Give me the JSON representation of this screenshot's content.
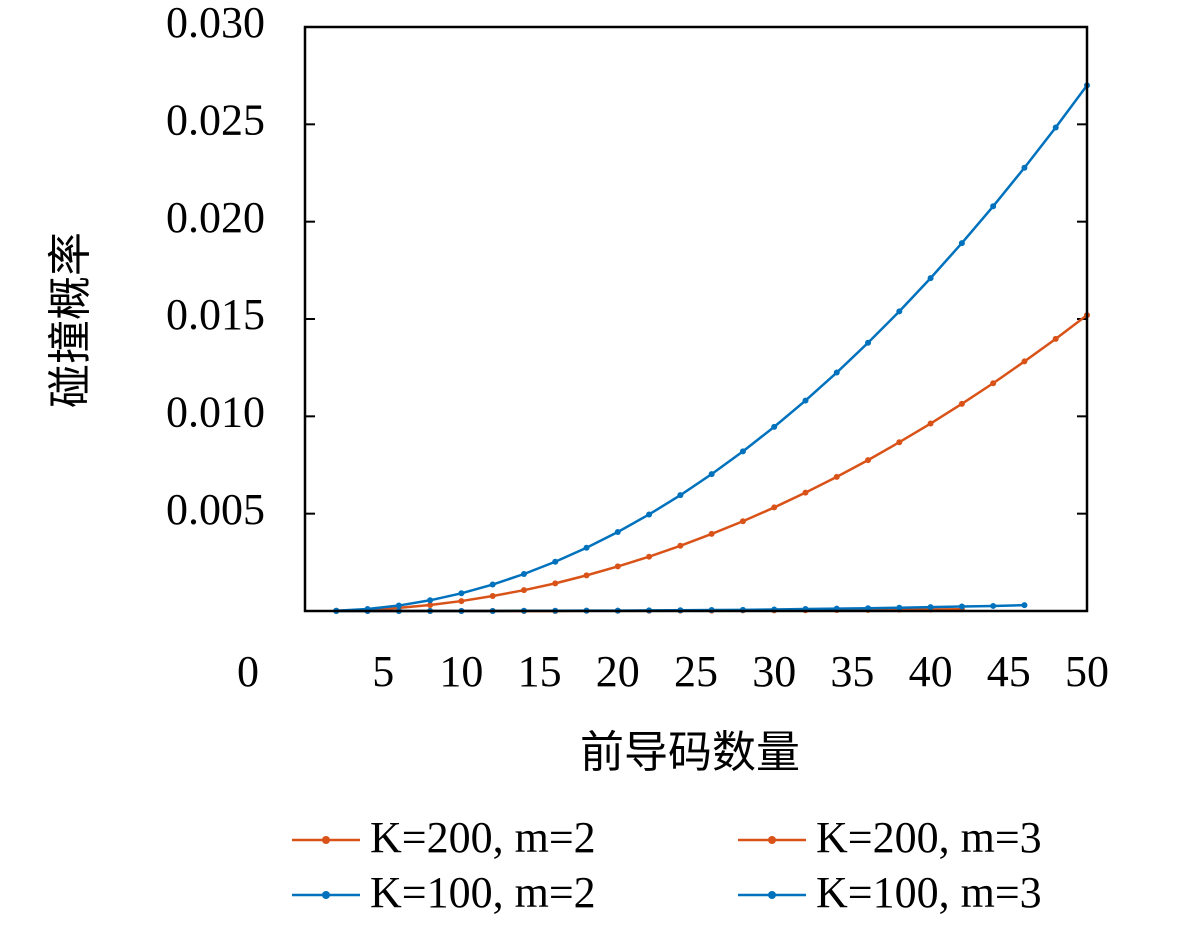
{
  "chart_data": {
    "type": "line",
    "x_label": "前导码数量",
    "y_label": "碰撞概率",
    "xlim": [
      0,
      50
    ],
    "xticks": [
      0,
      5,
      10,
      15,
      20,
      25,
      30,
      35,
      40,
      45,
      50
    ],
    "ylim": [
      0,
      0.03
    ],
    "yticks": [
      0.005,
      {
        "value": 0.01,
        "label": "0.010"
      },
      0.015,
      {
        "value": 0.02,
        "label": "0.020"
      },
      0.025,
      {
        "value": 0.03,
        "label": "0.030"
      }
    ],
    "x": [
      2,
      4,
      6,
      8,
      10,
      12,
      14,
      16,
      18,
      20,
      22,
      24,
      26,
      28,
      30,
      32,
      34,
      36,
      38,
      40,
      42,
      44,
      46,
      48,
      50
    ],
    "series": [
      {
        "name": "K=200, m=2",
        "color": "#d95319",
        "values": [
          1e-05,
          6e-05,
          0.00016,
          0.00031,
          0.00051,
          0.00077,
          0.00107,
          0.00142,
          0.00183,
          0.00229,
          0.00279,
          0.00335,
          0.00396,
          0.00461,
          0.00532,
          0.00608,
          0.00689,
          0.00775,
          0.00867,
          0.00963,
          0.01064,
          0.0117,
          0.01282,
          0.01398,
          0.0152
        ]
      },
      {
        "name": "K=200, m=3",
        "color": "#d95319",
        "values": [
          0,
          0,
          0,
          0,
          0,
          0,
          0,
          0,
          1e-05,
          1e-05,
          1e-05,
          2e-05,
          2e-05,
          3e-05,
          3e-05,
          4e-05,
          5e-05,
          6e-05,
          7e-05,
          8e-05,
          9e-05,
          null,
          null,
          null,
          null
        ]
      },
      {
        "name": "K=100, m=2",
        "color": "#0072bd",
        "values": [
          1e-05,
          0.0001,
          0.00028,
          0.00055,
          0.00091,
          0.00136,
          0.0019,
          0.00253,
          0.00325,
          0.00406,
          0.00496,
          0.00595,
          0.00703,
          0.0082,
          0.00946,
          0.01081,
          0.01225,
          0.01378,
          0.01539,
          0.0171,
          0.0189,
          0.02079,
          0.02277,
          0.02484,
          0.027
        ]
      },
      {
        "name": "K=100, m=3",
        "color": "#0072bd",
        "values": [
          0,
          0,
          0,
          0,
          0,
          0,
          1e-05,
          1e-05,
          2e-05,
          2e-05,
          3e-05,
          4e-05,
          5e-05,
          6e-05,
          8e-05,
          0.0001,
          0.00012,
          0.00014,
          0.00017,
          0.0002,
          0.00023,
          0.00026,
          0.0003,
          null,
          null
        ]
      }
    ]
  }
}
